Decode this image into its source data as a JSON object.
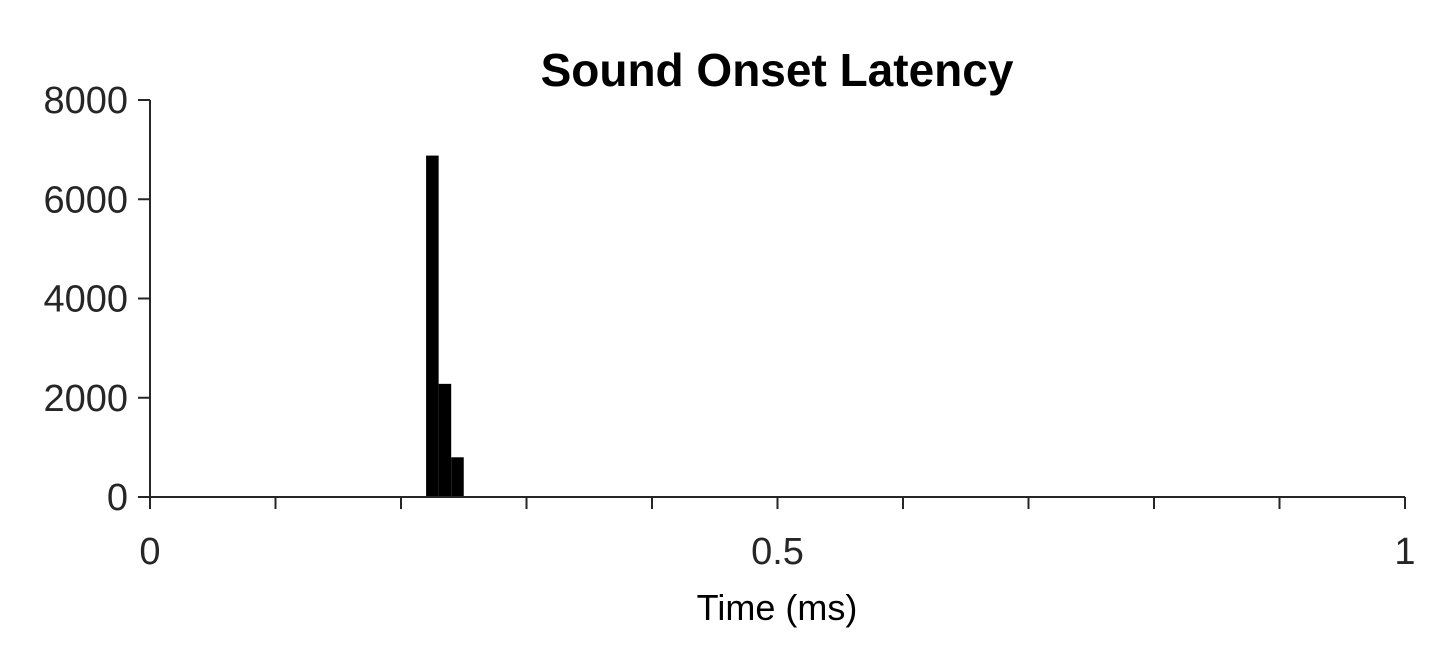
{
  "chart_data": {
    "type": "bar",
    "title": "Sound Onset Latency",
    "xlabel": "Time (ms)",
    "ylabel": "",
    "xlim": [
      0,
      1
    ],
    "ylim": [
      0,
      8000
    ],
    "x_ticks": [
      0,
      0.1,
      0.2,
      0.3,
      0.4,
      0.5,
      0.6,
      0.7,
      0.8,
      0.9,
      1
    ],
    "x_tick_labels": [
      "0",
      "",
      "",
      "",
      "",
      "0.5",
      "",
      "",
      "",
      "",
      "1"
    ],
    "y_ticks": [
      0,
      2000,
      4000,
      6000,
      8000
    ],
    "y_tick_labels": [
      "0",
      "2000",
      "4000",
      "6000",
      "8000"
    ],
    "grid": false,
    "bar_color": "#000000",
    "axis_color": "#262626",
    "bin_width": 0.01,
    "bins": [
      {
        "x": 0.225,
        "value": 6880
      },
      {
        "x": 0.235,
        "value": 2280
      },
      {
        "x": 0.245,
        "value": 800
      }
    ]
  }
}
